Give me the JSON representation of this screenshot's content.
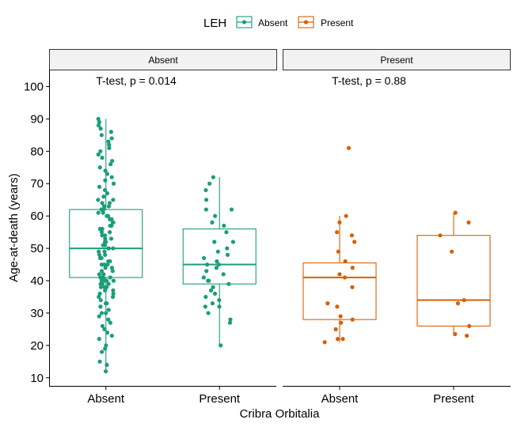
{
  "chart_data": {
    "type": "boxplot",
    "xlabel": "Cribra Orbitalia",
    "ylabel": "Age-at-death (years)",
    "ylim": [
      7.5,
      105
    ],
    "yticks": [
      10,
      20,
      30,
      40,
      50,
      60,
      70,
      80,
      90,
      100
    ],
    "categories": [
      "Absent",
      "Present"
    ],
    "legend": {
      "title": "LEH",
      "position": "top",
      "entries": [
        {
          "label": "Absent",
          "color": "#1b9e77"
        },
        {
          "label": "Present",
          "color": "#d95f02"
        }
      ]
    },
    "panels": [
      {
        "strip": "Absent",
        "annotation": "T-test, p = 0.014",
        "series_color": "#1b9e77",
        "boxes": [
          {
            "category": "Absent",
            "min": 12,
            "q1": 41,
            "median": 50,
            "q3": 62,
            "max": 90
          },
          {
            "category": "Present",
            "min": 20,
            "q1": 39,
            "median": 45,
            "q3": 56,
            "max": 72
          }
        ],
        "points": [
          {
            "category": "Absent",
            "values": [
              12,
              14,
              15,
              18,
              19,
              20,
              22,
              23,
              24,
              25,
              26,
              27,
              28,
              29,
              30,
              30,
              31,
              32,
              33,
              33,
              34,
              35,
              35,
              36,
              36,
              37,
              37,
              38,
              38,
              38,
              39,
              39,
              39,
              40,
              40,
              40,
              40,
              41,
              41,
              41,
              42,
              42,
              42,
              43,
              43,
              44,
              44,
              45,
              45,
              45,
              46,
              46,
              47,
              47,
              48,
              48,
              49,
              49,
              50,
              50,
              50,
              51,
              51,
              52,
              52,
              53,
              53,
              54,
              54,
              55,
              55,
              56,
              56,
              57,
              57,
              58,
              58,
              59,
              59,
              60,
              60,
              61,
              61,
              62,
              62,
              63,
              63,
              64,
              64,
              65,
              65,
              66,
              67,
              68,
              69,
              70,
              71,
              72,
              73,
              74,
              75,
              76,
              77,
              78,
              79,
              80,
              81,
              82,
              83,
              84,
              85,
              86,
              87,
              88,
              89,
              90
            ]
          },
          {
            "category": "Present",
            "values": [
              20,
              27,
              28,
              30,
              32,
              32,
              33,
              34,
              35,
              36,
              37,
              38,
              39,
              40,
              40,
              41,
              42,
              43,
              44,
              45,
              45,
              46,
              47,
              48,
              49,
              50,
              52,
              52,
              55,
              57,
              58,
              60,
              62,
              62,
              65,
              68,
              70,
              72
            ]
          }
        ]
      },
      {
        "strip": "Present",
        "annotation": "T-test, p = 0.88",
        "series_color": "#d95f02",
        "boxes": [
          {
            "category": "Absent",
            "min": 21,
            "q1": 28,
            "median": 41,
            "q3": 45.5,
            "max": 60
          },
          {
            "category": "Present",
            "min": 23,
            "q1": 26,
            "median": 34,
            "q3": 54,
            "max": 61
          }
        ],
        "points": [
          {
            "category": "Absent",
            "values": [
              21,
              22,
              22,
              25,
              27,
              28,
              29,
              32,
              33,
              38,
              41,
              42,
              44,
              46,
              49,
              52,
              54,
              55,
              58,
              60,
              81
            ]
          },
          {
            "category": "Present",
            "values": [
              23,
              23.5,
              26,
              33,
              34,
              49,
              54,
              58,
              61
            ]
          }
        ]
      }
    ]
  }
}
